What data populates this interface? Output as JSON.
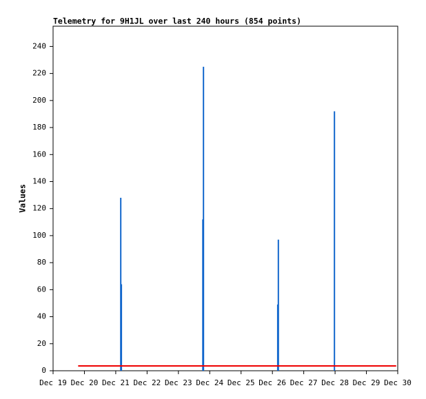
{
  "chart_data": {
    "type": "impulse-line",
    "title": "Telemetry for 9H1JL over last 240 hours (854 points)",
    "y_label": "Values",
    "xlim": [
      19,
      30
    ],
    "xticks": [
      {
        "value": 19,
        "label": "Dec 19"
      },
      {
        "value": 20,
        "label": "Dec 20"
      },
      {
        "value": 21,
        "label": "Dec 21"
      },
      {
        "value": 22,
        "label": "Dec 22"
      },
      {
        "value": 23,
        "label": "Dec 23"
      },
      {
        "value": 24,
        "label": "Dec 24"
      },
      {
        "value": 25,
        "label": "Dec 25"
      },
      {
        "value": 26,
        "label": "Dec 26"
      },
      {
        "value": 27,
        "label": "Dec 27"
      },
      {
        "value": 28,
        "label": "Dec 28"
      },
      {
        "value": 29,
        "label": "Dec 29"
      },
      {
        "value": 30,
        "label": "Dec 30"
      }
    ],
    "ylim": [
      0,
      255
    ],
    "yticks": [
      0,
      20,
      40,
      60,
      80,
      100,
      120,
      140,
      160,
      180,
      200,
      220,
      240
    ],
    "grid": false,
    "series": [
      {
        "style": "impulse",
        "color": "#1166cc",
        "x": [
          21.16,
          21.18,
          23.78,
          23.8,
          26.17,
          26.19,
          27.98
        ],
        "values": [
          128,
          64,
          112,
          225,
          49,
          97,
          192
        ]
      },
      {
        "style": "line",
        "color": "#ee0000",
        "x": [
          19.8,
          29.95
        ],
        "values": [
          3.6,
          3.6
        ]
      }
    ]
  }
}
